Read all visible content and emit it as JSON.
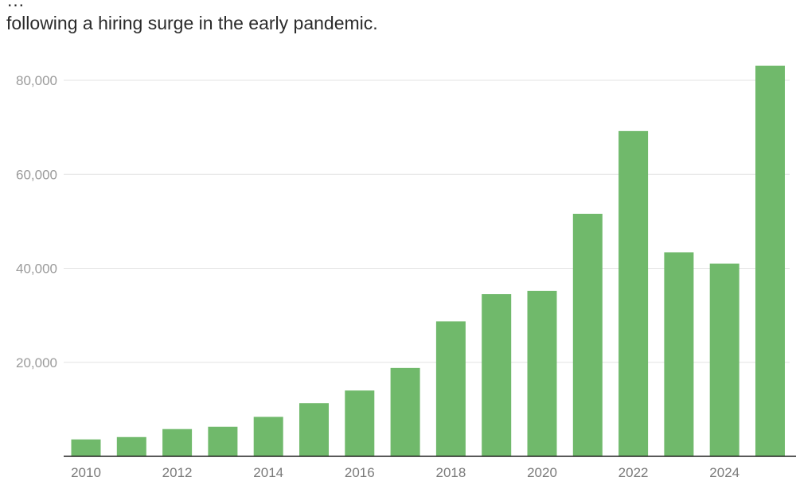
{
  "subtitle_lines": [
    "…",
    "following a hiring surge in the early pandemic."
  ],
  "chart_data": {
    "type": "bar",
    "title": "",
    "xlabel": "",
    "ylabel": "",
    "categories": [
      "2010",
      "2011",
      "2012",
      "2013",
      "2014",
      "2015",
      "2016",
      "2017",
      "2018",
      "2019",
      "2020",
      "2021",
      "2022",
      "2023",
      "2024",
      "2025"
    ],
    "values": [
      3600,
      4100,
      5800,
      6300,
      8400,
      11300,
      14000,
      18800,
      28700,
      34500,
      35200,
      51600,
      69200,
      43400,
      41000,
      83100
    ],
    "x_tick_labels": [
      "2010",
      "2012",
      "2014",
      "2016",
      "2018",
      "2020",
      "2022",
      "2024"
    ],
    "y_ticks": [
      20000,
      40000,
      60000,
      80000
    ],
    "y_tick_labels": [
      "20,000",
      "40,000",
      "60,000",
      "80,000"
    ],
    "ylim": [
      0,
      85000
    ],
    "grid": true,
    "bar_color": "#70b96b",
    "grid_color": "#e3e3e3",
    "axis_color": "#222222"
  }
}
